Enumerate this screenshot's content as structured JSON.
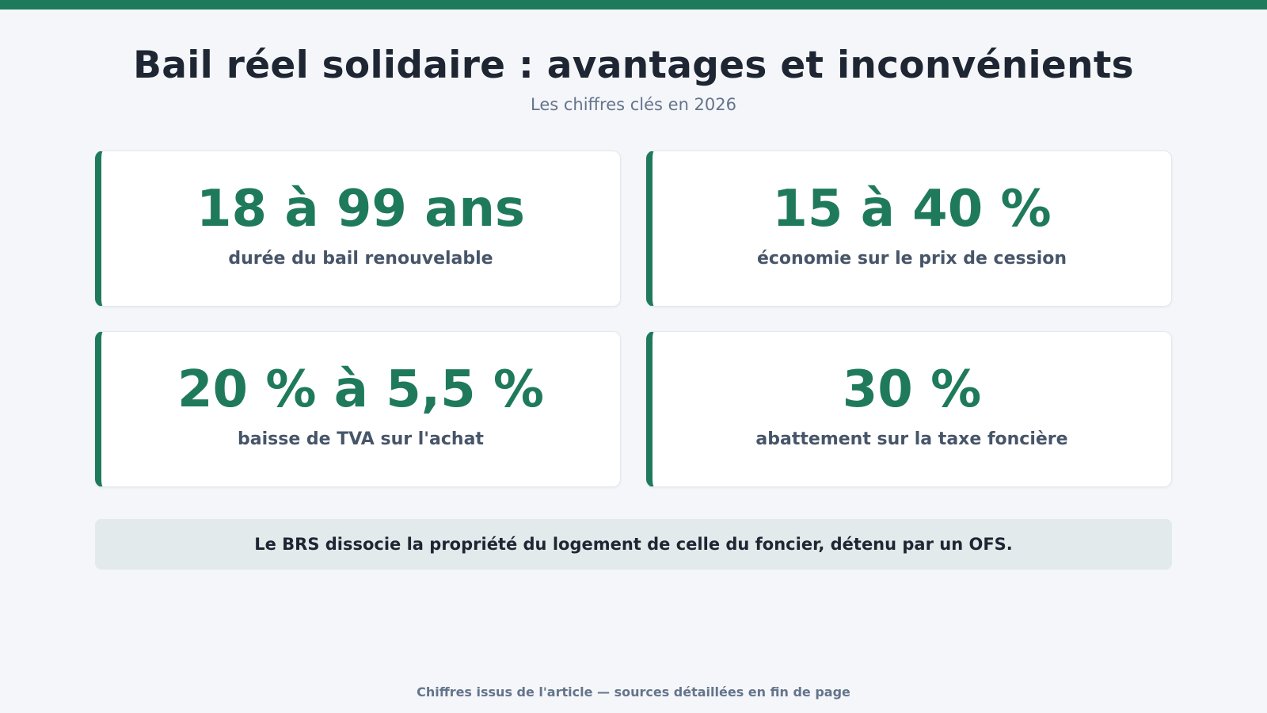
{
  "header": {
    "title": "Bail réel solidaire : avantages et inconvénients",
    "subtitle": "Les chiffres clés en 2026"
  },
  "stats": [
    {
      "value": "18 à 99 ans",
      "label": "durée du bail renouvelable"
    },
    {
      "value": "15 à 40 %",
      "label": "économie sur le prix de cession"
    },
    {
      "value": "20 % à 5,5 %",
      "label": "baisse de TVA sur l'achat"
    },
    {
      "value": "30 %",
      "label": "abattement sur la taxe foncière"
    }
  ],
  "note": "Le BRS dissocie la propriété du logement de celle du foncier, détenu par un OFS.",
  "footer": "Chiffres issus de l'article — sources détaillées en fin de page",
  "colors": {
    "accent": "#1f7a5c",
    "background": "#f4f6f9",
    "note_background": "#e3eaeb"
  }
}
